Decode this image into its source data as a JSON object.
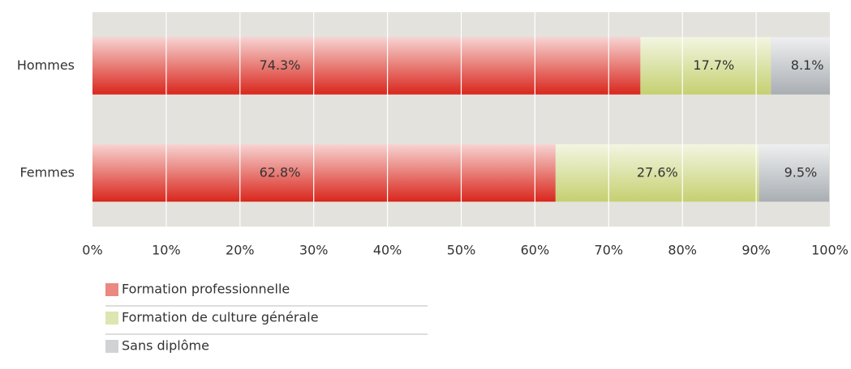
{
  "chart_data": {
    "type": "stacked-bar-horizontal",
    "categories": [
      "Hommes",
      "Femmes"
    ],
    "series": [
      {
        "name": "Formation professionnelle",
        "color": "#d9261c",
        "values": [
          74.3,
          62.8
        ],
        "value_labels": [
          "74.3%",
          "62.8%"
        ]
      },
      {
        "name": "Formation de culture générale",
        "color": "#c5d070",
        "values": [
          17.7,
          27.6
        ],
        "value_labels": [
          "17.7%",
          "27.6%"
        ]
      },
      {
        "name": "Sans diplôme",
        "color": "#a9aeb3",
        "values": [
          8.1,
          9.5
        ],
        "value_labels": [
          "8.1%",
          "9.5%"
        ]
      }
    ],
    "xlim": [
      0,
      100
    ],
    "xticks": [
      {
        "value": 0,
        "label": "0%"
      },
      {
        "value": 10,
        "label": "10%"
      },
      {
        "value": 20,
        "label": "20%"
      },
      {
        "value": 30,
        "label": "30%"
      },
      {
        "value": 40,
        "label": "40%"
      },
      {
        "value": 50,
        "label": "50%"
      },
      {
        "value": 60,
        "label": "60%"
      },
      {
        "value": 70,
        "label": "70%"
      },
      {
        "value": 80,
        "label": "80%"
      },
      {
        "value": 90,
        "label": "90%"
      },
      {
        "value": 100,
        "label": "100%"
      }
    ],
    "grid": true
  }
}
